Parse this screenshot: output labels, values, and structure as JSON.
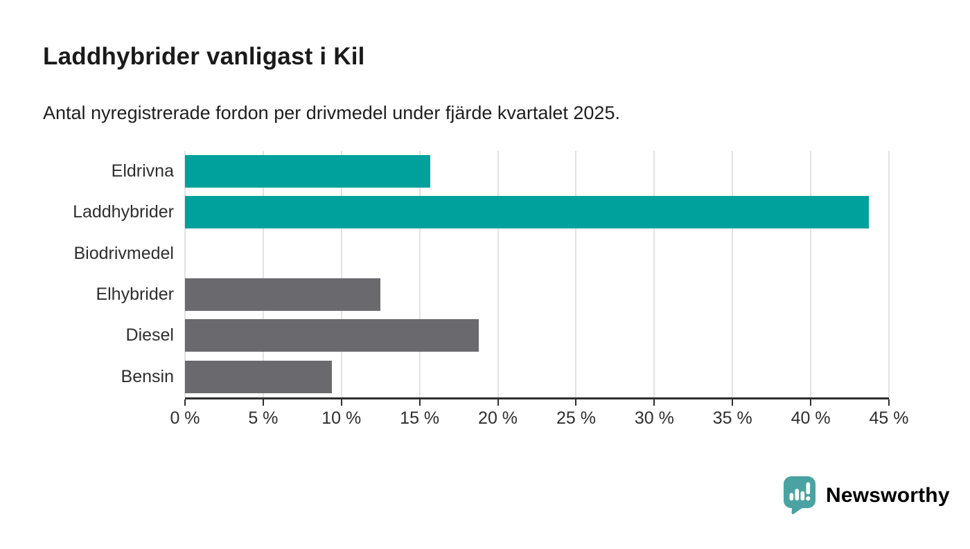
{
  "chart_data": {
    "type": "bar",
    "orientation": "horizontal",
    "title": "Laddhybrider vanligast i Kil",
    "subtitle": "Antal nyregistrerade fordon per drivmedel under fjärde kvartalet 2025.",
    "categories": [
      "Eldrivna",
      "Laddhybrider",
      "Biodrivmedel",
      "Elhybrider",
      "Diesel",
      "Bensin"
    ],
    "values": [
      15.7,
      43.7,
      0,
      12.5,
      18.8,
      9.4
    ],
    "bar_colors": [
      "#00a19c",
      "#00a19c",
      "#00a19c",
      "#6a6a6e",
      "#6a6a6e",
      "#6a6a6e"
    ],
    "highlight_color": "#00a19c",
    "default_color": "#6a6a6e",
    "xlabel": "",
    "ylabel": "",
    "xlim": [
      0,
      45
    ],
    "x_tick_step": 5,
    "x_tick_labels": [
      "0 %",
      "5 %",
      "10 %",
      "15 %",
      "20 %",
      "25 %",
      "30 %",
      "35 %",
      "40 %",
      "45 %"
    ],
    "grid": "vertical",
    "gridline_color": "#e2e2e2",
    "axis_color": "#2e2e2e",
    "legend": "none"
  },
  "footer": {
    "logo_text": "Newsworthy",
    "logo_color": "#3f9d9d",
    "logo_icon_color": "#4aa3a2"
  }
}
